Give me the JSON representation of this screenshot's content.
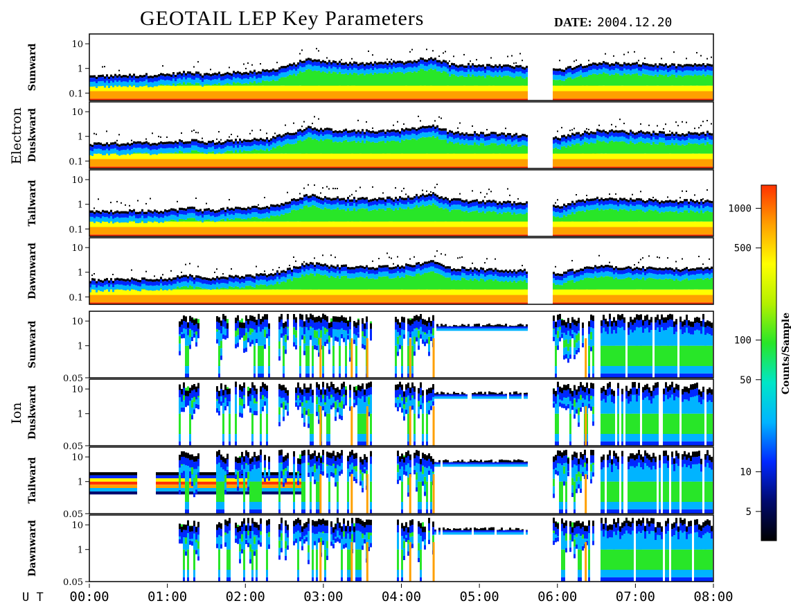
{
  "title": "GEOTAIL LEP Key Parameters",
  "date_label": "DATE:",
  "date_value": "2004.12.20",
  "chart_data": {
    "type": "heatmap",
    "x_unit_label": "U T",
    "x_ticks": [
      "00:00",
      "01:00",
      "02:00",
      "03:00",
      "04:00",
      "05:00",
      "06:00",
      "07:00",
      "08:00"
    ],
    "x_range_hours": [
      0,
      8
    ],
    "data_gap_hours": [
      5.6,
      5.93
    ],
    "groups": [
      {
        "name": "Electron",
        "panels": [
          "Sunward",
          "Duskward",
          "Tailward",
          "Dawnward"
        ],
        "y_ticks": [
          "10",
          "1",
          "0.1"
        ],
        "y_range": [
          0.05,
          25
        ],
        "y_scale": "log"
      },
      {
        "name": "Ion",
        "panels": [
          "Sunward",
          "Duskward",
          "Tailward",
          "Dawnward"
        ],
        "y_ticks": [
          "10",
          "1",
          "0.05"
        ],
        "y_range": [
          0.05,
          25
        ],
        "y_scale": "log"
      }
    ],
    "colorbar": {
      "label": "Counts/Sample",
      "scale": "log",
      "ticks": [
        "1000",
        "500",
        "100",
        "50",
        "10",
        "5"
      ],
      "tick_values": [
        1000,
        500,
        100,
        50,
        10,
        5
      ],
      "range": [
        3,
        1500
      ]
    },
    "palette": [
      "#000000",
      "#000a6e",
      "#0028ff",
      "#00b4ff",
      "#00e6c8",
      "#28e628",
      "#b4f000",
      "#ffff00",
      "#ffa000",
      "#ff3200"
    ],
    "electron_boundary_by_hour": [
      [
        0.0,
        0.5
      ],
      [
        0.5,
        0.55
      ],
      [
        1.0,
        0.6
      ],
      [
        1.3,
        0.75
      ],
      [
        1.45,
        0.6
      ],
      [
        2.0,
        0.75
      ],
      [
        2.3,
        0.85
      ],
      [
        2.6,
        1.5
      ],
      [
        2.8,
        2.5
      ],
      [
        3.0,
        2.0
      ],
      [
        3.3,
        1.8
      ],
      [
        3.6,
        1.7
      ],
      [
        4.0,
        1.9
      ],
      [
        4.4,
        2.8
      ],
      [
        4.6,
        1.6
      ],
      [
        5.0,
        1.4
      ],
      [
        5.6,
        1.2
      ],
      [
        6.0,
        0.9
      ],
      [
        6.5,
        1.8
      ],
      [
        7.0,
        1.6
      ],
      [
        7.5,
        1.4
      ],
      [
        8.0,
        1.5
      ]
    ],
    "ion_active_intervals": [
      [
        1.12,
        1.4
      ],
      [
        1.6,
        1.8
      ],
      [
        1.85,
        2.3
      ],
      [
        2.4,
        2.55
      ],
      [
        2.6,
        3.6
      ],
      [
        3.9,
        5.6
      ],
      [
        5.93,
        6.45
      ],
      [
        6.55,
        8.0
      ]
    ],
    "ion_tailward_low_band_interval": [
      0.0,
      2.7
    ]
  },
  "panel_labels": {
    "electron_group": "Electron",
    "ion_group": "Ion"
  }
}
